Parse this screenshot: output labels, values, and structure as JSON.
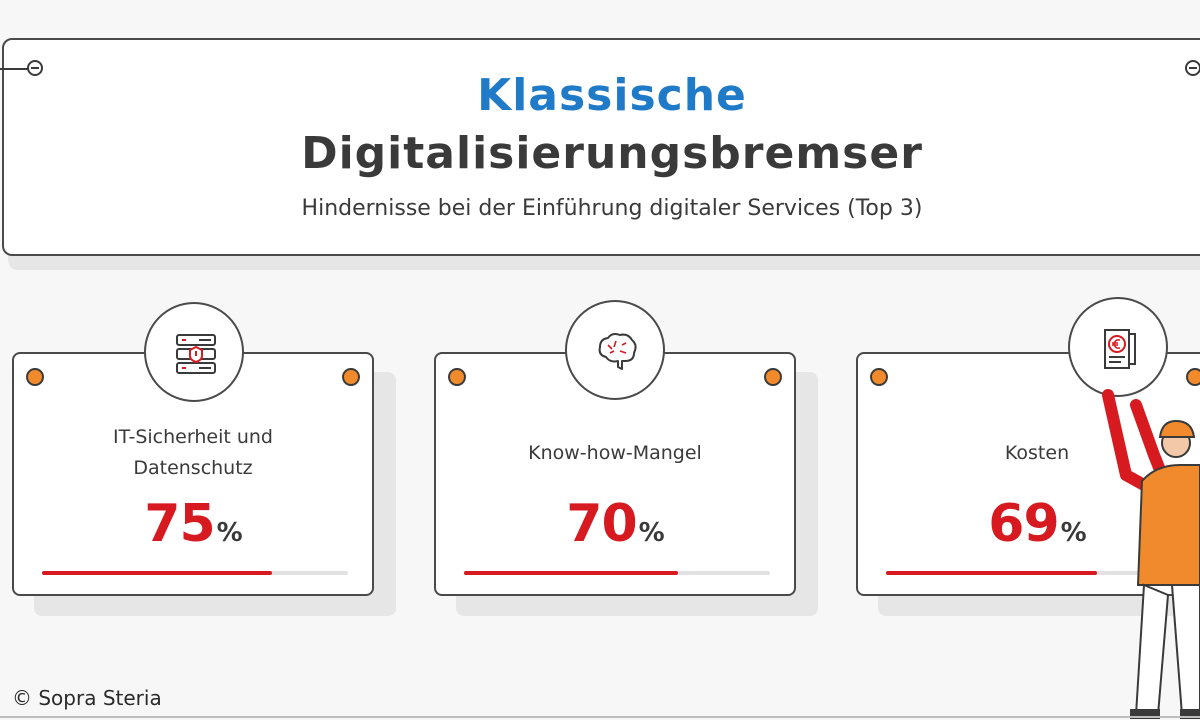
{
  "header": {
    "title_top": "Klassische",
    "title_main": "Digitalisierungsbremser",
    "subtitle": "Hindernisse bei der Einführung digitaler Services (Top 3)"
  },
  "cards": [
    {
      "label_lines": [
        "IT-Sicherheit und",
        "Datenschutz"
      ],
      "value": "75",
      "unit": "%",
      "icon": "server-security-icon"
    },
    {
      "label_lines": [
        "Know-how-Mangel"
      ],
      "value": "70",
      "unit": "%",
      "icon": "brain-icon"
    },
    {
      "label_lines": [
        "Kosten"
      ],
      "value": "69",
      "unit": "%",
      "icon": "euro-document-icon"
    }
  ],
  "chart_data": {
    "type": "bar",
    "title": "Klassische Digitalisierungsbremser",
    "subtitle": "Hindernisse bei der Einführung digitaler Services (Top 3)",
    "categories": [
      "IT-Sicherheit und Datenschutz",
      "Know-how-Mangel",
      "Kosten"
    ],
    "values": [
      75,
      70,
      69
    ],
    "unit": "%",
    "ylim": [
      0,
      100
    ]
  },
  "colors": {
    "accent_blue": "#1f7ac8",
    "value_red": "#d71920",
    "dot_orange": "#f08a2c",
    "text_dark": "#3a3a3a"
  },
  "footer": {
    "copyright": "© Sopra Steria"
  }
}
